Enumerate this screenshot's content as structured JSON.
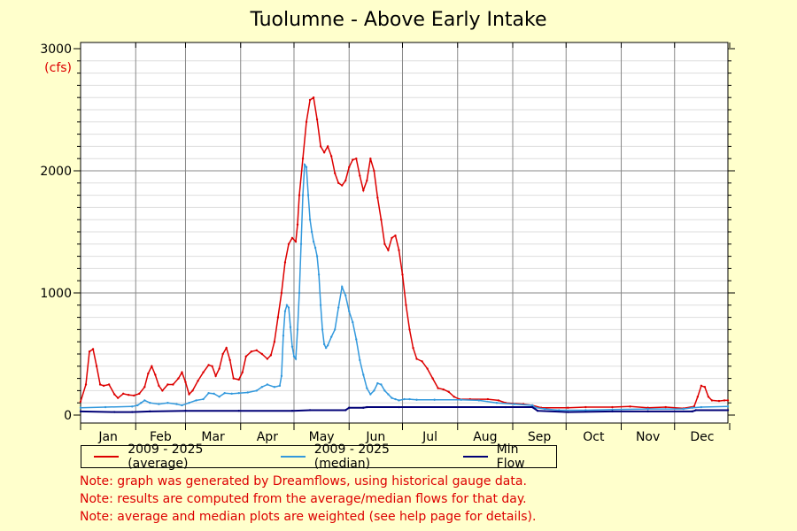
{
  "chart_data": {
    "type": "line",
    "title": "Tuolumne - Above Early Intake",
    "ylabel": "(cfs)",
    "ylim": [
      0,
      3000
    ],
    "yticks": [
      0,
      1000,
      2000,
      3000
    ],
    "xlabel": "",
    "months": [
      "Jan",
      "Feb",
      "Mar",
      "Apr",
      "May",
      "Jun",
      "Jul",
      "Aug",
      "Sep",
      "Oct",
      "Nov",
      "Dec"
    ],
    "x_unit": "day_of_year",
    "grid": true,
    "legend_position": "bottom",
    "series": [
      {
        "name": "2009 - 2025 (average)",
        "color": "#dd0000",
        "points": [
          [
            1,
            110
          ],
          [
            4,
            250
          ],
          [
            6,
            520
          ],
          [
            8,
            540
          ],
          [
            10,
            400
          ],
          [
            12,
            250
          ],
          [
            14,
            240
          ],
          [
            17,
            250
          ],
          [
            20,
            170
          ],
          [
            22,
            140
          ],
          [
            25,
            175
          ],
          [
            28,
            165
          ],
          [
            31,
            160
          ],
          [
            34,
            175
          ],
          [
            37,
            230
          ],
          [
            39,
            340
          ],
          [
            41,
            400
          ],
          [
            43,
            330
          ],
          [
            45,
            240
          ],
          [
            47,
            200
          ],
          [
            50,
            250
          ],
          [
            53,
            250
          ],
          [
            56,
            300
          ],
          [
            58,
            350
          ],
          [
            60,
            270
          ],
          [
            62,
            170
          ],
          [
            64,
            200
          ],
          [
            67,
            280
          ],
          [
            70,
            350
          ],
          [
            73,
            410
          ],
          [
            75,
            400
          ],
          [
            77,
            320
          ],
          [
            79,
            380
          ],
          [
            81,
            500
          ],
          [
            83,
            550
          ],
          [
            85,
            450
          ],
          [
            87,
            300
          ],
          [
            90,
            290
          ],
          [
            92,
            350
          ],
          [
            94,
            480
          ],
          [
            97,
            520
          ],
          [
            100,
            530
          ],
          [
            103,
            500
          ],
          [
            106,
            460
          ],
          [
            108,
            490
          ],
          [
            110,
            600
          ],
          [
            112,
            800
          ],
          [
            114,
            1000
          ],
          [
            116,
            1250
          ],
          [
            118,
            1400
          ],
          [
            120,
            1450
          ],
          [
            122,
            1420
          ],
          [
            123,
            1560
          ],
          [
            124,
            1800
          ],
          [
            126,
            2100
          ],
          [
            128,
            2400
          ],
          [
            130,
            2580
          ],
          [
            132,
            2600
          ],
          [
            134,
            2420
          ],
          [
            136,
            2200
          ],
          [
            138,
            2150
          ],
          [
            140,
            2200
          ],
          [
            142,
            2120
          ],
          [
            144,
            1980
          ],
          [
            146,
            1900
          ],
          [
            148,
            1880
          ],
          [
            150,
            1920
          ],
          [
            152,
            2030
          ],
          [
            154,
            2090
          ],
          [
            156,
            2100
          ],
          [
            158,
            1960
          ],
          [
            160,
            1840
          ],
          [
            162,
            1920
          ],
          [
            164,
            2100
          ],
          [
            166,
            2000
          ],
          [
            168,
            1780
          ],
          [
            170,
            1600
          ],
          [
            172,
            1400
          ],
          [
            174,
            1350
          ],
          [
            176,
            1450
          ],
          [
            178,
            1470
          ],
          [
            180,
            1350
          ],
          [
            182,
            1150
          ],
          [
            184,
            900
          ],
          [
            186,
            700
          ],
          [
            188,
            550
          ],
          [
            190,
            460
          ],
          [
            193,
            440
          ],
          [
            196,
            380
          ],
          [
            199,
            300
          ],
          [
            202,
            220
          ],
          [
            205,
            210
          ],
          [
            208,
            190
          ],
          [
            211,
            150
          ],
          [
            214,
            130
          ],
          [
            220,
            130
          ],
          [
            230,
            130
          ],
          [
            236,
            120
          ],
          [
            240,
            100
          ],
          [
            250,
            90
          ],
          [
            255,
            80
          ],
          [
            260,
            60
          ],
          [
            275,
            60
          ],
          [
            285,
            65
          ],
          [
            300,
            65
          ],
          [
            310,
            70
          ],
          [
            320,
            60
          ],
          [
            330,
            65
          ],
          [
            340,
            55
          ],
          [
            346,
            70
          ],
          [
            348,
            150
          ],
          [
            350,
            240
          ],
          [
            352,
            230
          ],
          [
            354,
            150
          ],
          [
            356,
            120
          ],
          [
            360,
            115
          ],
          [
            363,
            120
          ],
          [
            365,
            120
          ]
        ]
      },
      {
        "name": "2009 - 2025 (median)",
        "color": "#3399dd",
        "points": [
          [
            1,
            60
          ],
          [
            15,
            65
          ],
          [
            30,
            70
          ],
          [
            33,
            80
          ],
          [
            35,
            100
          ],
          [
            37,
            120
          ],
          [
            40,
            100
          ],
          [
            45,
            90
          ],
          [
            50,
            100
          ],
          [
            55,
            90
          ],
          [
            58,
            80
          ],
          [
            62,
            100
          ],
          [
            66,
            120
          ],
          [
            70,
            130
          ],
          [
            73,
            180
          ],
          [
            76,
            175
          ],
          [
            79,
            150
          ],
          [
            82,
            180
          ],
          [
            86,
            175
          ],
          [
            90,
            180
          ],
          [
            95,
            185
          ],
          [
            100,
            200
          ],
          [
            103,
            230
          ],
          [
            106,
            250
          ],
          [
            110,
            230
          ],
          [
            113,
            240
          ],
          [
            114,
            320
          ],
          [
            115,
            650
          ],
          [
            116,
            850
          ],
          [
            117,
            900
          ],
          [
            118,
            880
          ],
          [
            119,
            720
          ],
          [
            120,
            560
          ],
          [
            121,
            480
          ],
          [
            122,
            460
          ],
          [
            123,
            700
          ],
          [
            124,
            1000
          ],
          [
            125,
            1400
          ],
          [
            126,
            1800
          ],
          [
            127,
            2050
          ],
          [
            128,
            2030
          ],
          [
            129,
            1800
          ],
          [
            130,
            1600
          ],
          [
            131,
            1500
          ],
          [
            132,
            1420
          ],
          [
            133,
            1370
          ],
          [
            134,
            1300
          ],
          [
            135,
            1150
          ],
          [
            136,
            900
          ],
          [
            137,
            700
          ],
          [
            138,
            580
          ],
          [
            139,
            550
          ],
          [
            140,
            570
          ],
          [
            142,
            640
          ],
          [
            144,
            700
          ],
          [
            146,
            880
          ],
          [
            148,
            1050
          ],
          [
            150,
            980
          ],
          [
            152,
            850
          ],
          [
            154,
            760
          ],
          [
            156,
            620
          ],
          [
            158,
            450
          ],
          [
            160,
            330
          ],
          [
            162,
            220
          ],
          [
            164,
            170
          ],
          [
            166,
            200
          ],
          [
            168,
            260
          ],
          [
            170,
            250
          ],
          [
            172,
            200
          ],
          [
            174,
            170
          ],
          [
            176,
            140
          ],
          [
            178,
            130
          ],
          [
            180,
            120
          ],
          [
            183,
            130
          ],
          [
            186,
            130
          ],
          [
            190,
            125
          ],
          [
            200,
            125
          ],
          [
            215,
            125
          ],
          [
            225,
            120
          ],
          [
            235,
            100
          ],
          [
            245,
            90
          ],
          [
            255,
            80
          ],
          [
            257,
            60
          ],
          [
            262,
            50
          ],
          [
            270,
            40
          ],
          [
            285,
            40
          ],
          [
            300,
            45
          ],
          [
            320,
            50
          ],
          [
            340,
            50
          ],
          [
            345,
            60
          ],
          [
            350,
            65
          ],
          [
            365,
            70
          ]
        ]
      },
      {
        "name": "Min Flow",
        "color": "#000077",
        "points": [
          [
            1,
            30
          ],
          [
            20,
            25
          ],
          [
            30,
            25
          ],
          [
            40,
            30
          ],
          [
            60,
            35
          ],
          [
            90,
            35
          ],
          [
            120,
            35
          ],
          [
            130,
            40
          ],
          [
            150,
            40
          ],
          [
            152,
            60
          ],
          [
            160,
            60
          ],
          [
            162,
            65
          ],
          [
            180,
            65
          ],
          [
            240,
            65
          ],
          [
            255,
            65
          ],
          [
            258,
            35
          ],
          [
            275,
            25
          ],
          [
            300,
            30
          ],
          [
            320,
            30
          ],
          [
            345,
            30
          ],
          [
            347,
            40
          ],
          [
            365,
            40
          ]
        ]
      }
    ]
  },
  "notes": [
    "Note: graph was generated by Dreamflows, using historical gauge data.",
    "Note: results are computed from the average/median flows for that day.",
    "Note: average and median plots are weighted (see help page for details)."
  ]
}
